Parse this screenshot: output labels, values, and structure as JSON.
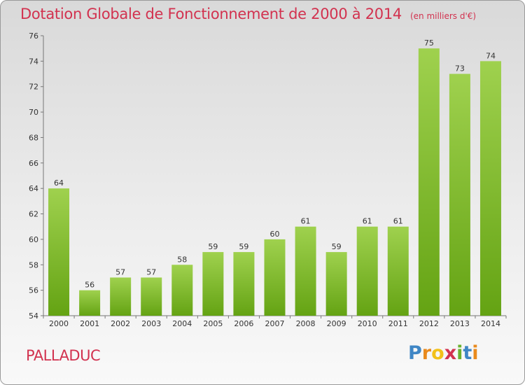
{
  "title": "Dotation Globale de Fonctionnement de 2000 à 2014",
  "subtitle": "(en milliers d'€)",
  "commune": "PALLADUC",
  "logo_text": "Proxiti",
  "colors": {
    "title": "#d2324f",
    "bar_light": "#9fd14e",
    "bar_dark": "#64a313",
    "axis": "#777777",
    "text": "#333333"
  },
  "chart_data": {
    "type": "bar",
    "categories": [
      "2000",
      "2001",
      "2002",
      "2003",
      "2004",
      "2005",
      "2006",
      "2007",
      "2008",
      "2009",
      "2010",
      "2011",
      "2012",
      "2013",
      "2014"
    ],
    "values": [
      64,
      56,
      57,
      57,
      58,
      59,
      59,
      60,
      61,
      59,
      61,
      61,
      75,
      73,
      74
    ],
    "ylim": [
      54,
      76
    ],
    "yticks": [
      54,
      56,
      58,
      60,
      62,
      64,
      66,
      68,
      70,
      72,
      74,
      76
    ],
    "data_labels": true,
    "grid": false
  }
}
